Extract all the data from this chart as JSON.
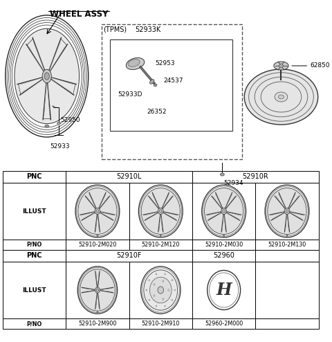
{
  "title": "WHEEL ASSY",
  "bg_color": "#ffffff",
  "text_color": "#000000",
  "parts": {
    "tpms_label": "(TPMS)",
    "tpms_pnc": "52933K",
    "part_52953": "52953",
    "part_24537": "24537",
    "part_52933D": "52933D",
    "part_26352": "26352",
    "part_52934": "52934",
    "part_52950": "52950",
    "part_52933": "52933",
    "part_62850": "62850"
  },
  "table": {
    "col_labels": [
      "PNC",
      "ILLUST",
      "P/NO"
    ],
    "pnc_row1": [
      "PNC",
      "52910L",
      "",
      "52910R",
      ""
    ],
    "pno_row1": [
      "P/NO",
      "52910-2M020",
      "52910-2M120",
      "52910-2M030",
      "52910-2M130"
    ],
    "pnc_row2": [
      "PNC",
      "52910F",
      "",
      "52960",
      ""
    ],
    "pno_row2": [
      "P/NO",
      "52910-2M900",
      "52910-2M910",
      "52960-2M000",
      ""
    ]
  }
}
